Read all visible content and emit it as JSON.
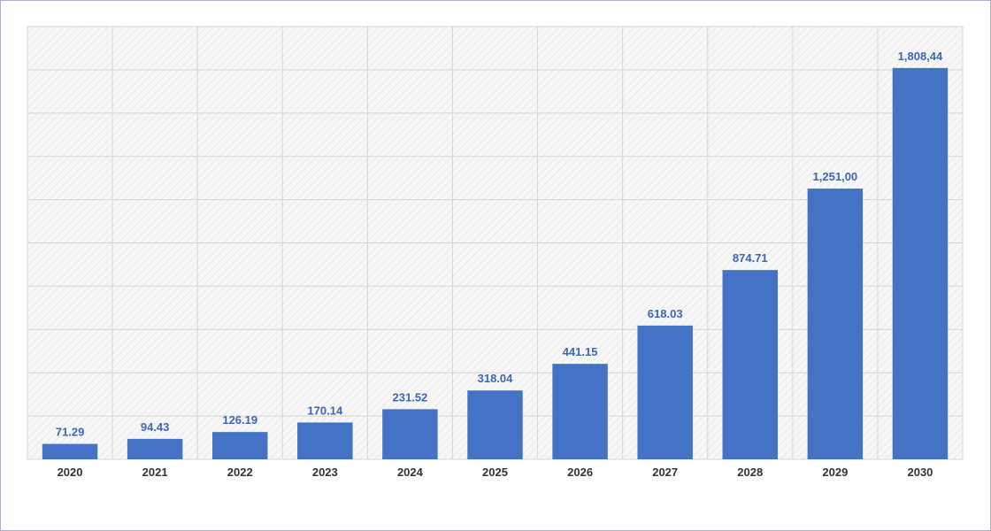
{
  "chart_data": {
    "type": "bar",
    "title": "",
    "xlabel": "",
    "ylabel": "",
    "categories": [
      "2020",
      "2021",
      "2022",
      "2023",
      "2024",
      "2025",
      "2026",
      "2027",
      "2028",
      "2029",
      "2030"
    ],
    "values": [
      71.29,
      94.43,
      126.19,
      170.14,
      231.52,
      318.04,
      441.15,
      618.03,
      874.71,
      1251.0,
      1808.44
    ],
    "value_labels": [
      "71.29",
      "94.43",
      "126.19",
      "170.14",
      "231.52",
      "318.04",
      "441.15",
      "618.03",
      "874.71",
      "1,251,00",
      "1,808,44"
    ],
    "ylim": [
      0,
      2000
    ],
    "y_axis_labels_shown": false,
    "grid": true,
    "legend": "none",
    "colors": {
      "bar": "#4472c4",
      "value_label": "#3d66b7",
      "tick_label": "#333333",
      "grid": "#d6d6d6",
      "border": "#a9aed0"
    }
  }
}
